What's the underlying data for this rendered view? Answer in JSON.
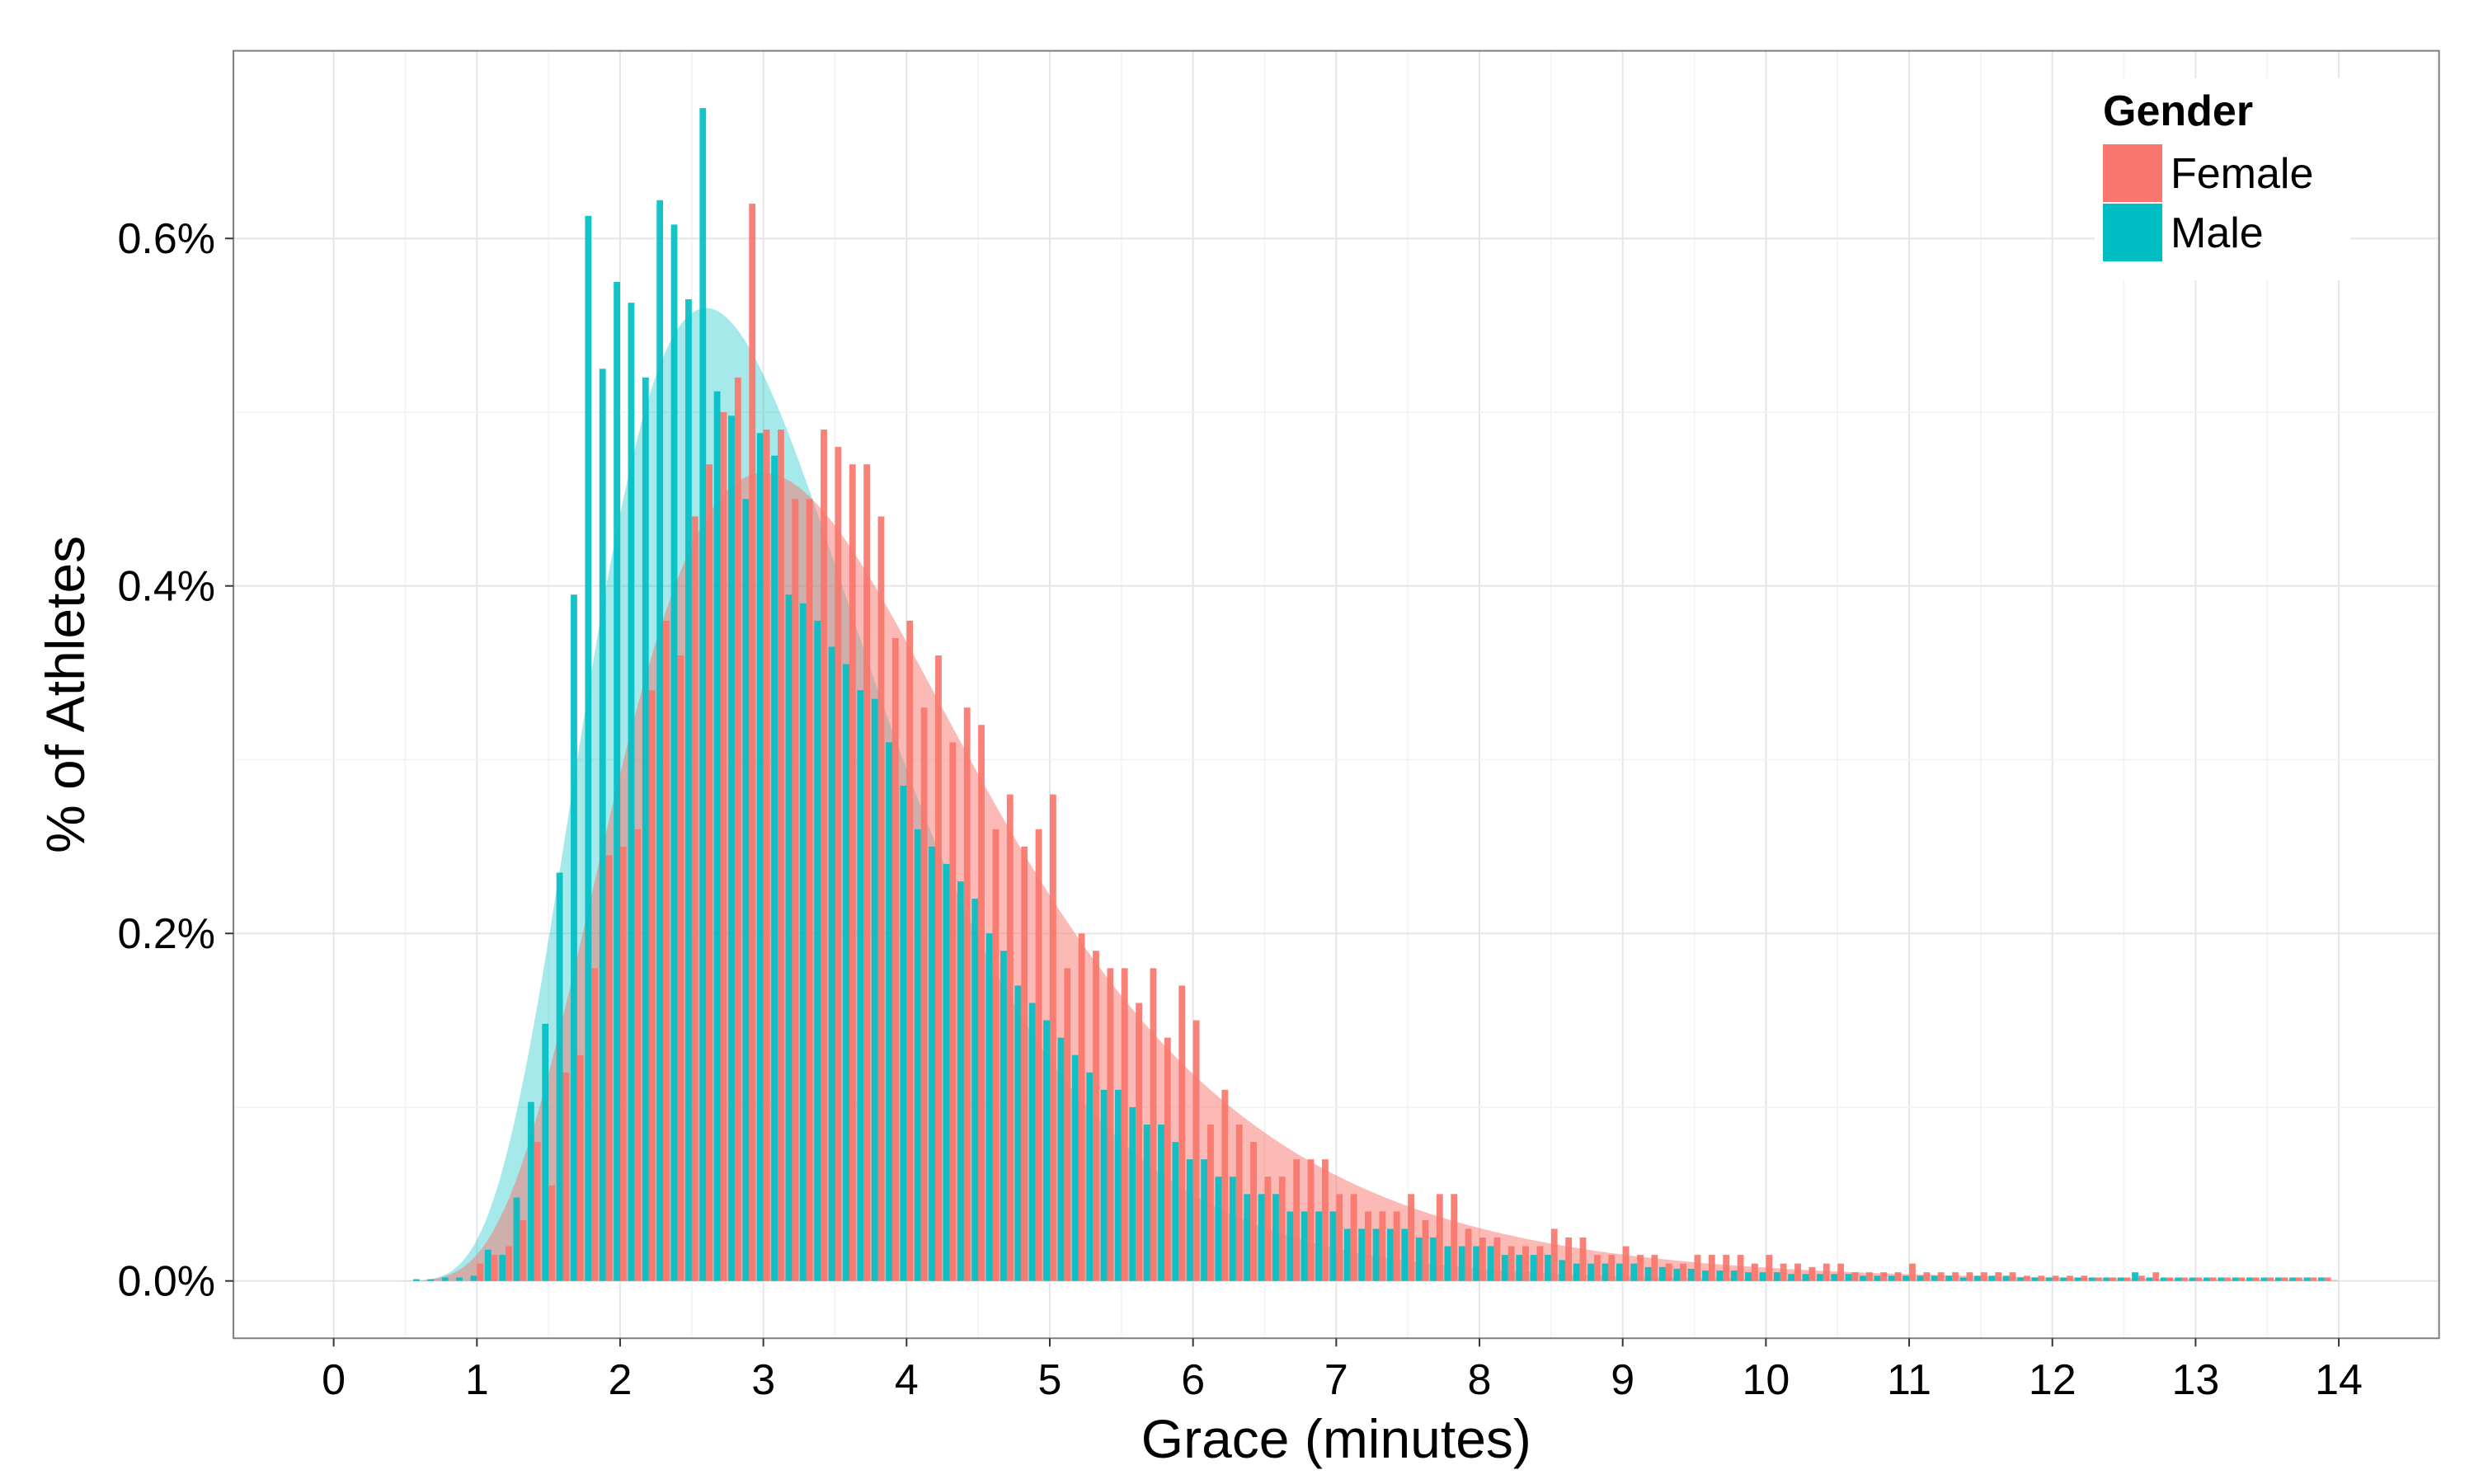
{
  "chart_data": {
    "type": "bar",
    "xlabel": "Grace (minutes)",
    "ylabel": "% of Athletes",
    "xlim": [
      -0.7,
      14.7
    ],
    "ylim": [
      -0.00033,
      0.00708
    ],
    "x_ticks": [
      0,
      1,
      2,
      3,
      4,
      5,
      6,
      7,
      8,
      9,
      10,
      11,
      12,
      13,
      14
    ],
    "x_tick_labels": [
      "0",
      "1",
      "2",
      "3",
      "4",
      "5",
      "6",
      "7",
      "8",
      "9",
      "10",
      "11",
      "12",
      "13",
      "14"
    ],
    "y_ticks": [
      0,
      0.002,
      0.004,
      0.006
    ],
    "y_tick_labels": [
      "0.0%",
      "0.2%",
      "0.4%",
      "0.6%"
    ],
    "bin_width_minutes": 0.1,
    "grid": true,
    "legend": {
      "title": "Gender",
      "position": "top-right",
      "entries": [
        {
          "label": "Female",
          "color": "#F8766D"
        },
        {
          "label": "Male",
          "color": "#00BFC4"
        }
      ]
    },
    "colors": {
      "female": "#F8766D",
      "male": "#00BFC4",
      "panel_grid": "#ebebeb",
      "panel_border": "#7f7f7f"
    },
    "x": [
      0.6,
      0.7,
      0.8,
      0.9,
      1.0,
      1.1,
      1.2,
      1.3,
      1.4,
      1.5,
      1.6,
      1.7,
      1.8,
      1.9,
      2.0,
      2.1,
      2.2,
      2.3,
      2.4,
      2.5,
      2.6,
      2.7,
      2.8,
      2.9,
      3.0,
      3.1,
      3.2,
      3.3,
      3.4,
      3.5,
      3.6,
      3.7,
      3.8,
      3.9,
      4.0,
      4.1,
      4.2,
      4.3,
      4.4,
      4.5,
      4.6,
      4.7,
      4.8,
      4.9,
      5.0,
      5.1,
      5.2,
      5.3,
      5.4,
      5.5,
      5.6,
      5.7,
      5.8,
      5.9,
      6.0,
      6.1,
      6.2,
      6.3,
      6.4,
      6.5,
      6.6,
      6.7,
      6.8,
      6.9,
      7.0,
      7.1,
      7.2,
      7.3,
      7.4,
      7.5,
      7.6,
      7.7,
      7.8,
      7.9,
      8.0,
      8.1,
      8.2,
      8.3,
      8.4,
      8.5,
      8.6,
      8.7,
      8.8,
      8.9,
      9.0,
      9.1,
      9.2,
      9.3,
      9.4,
      9.5,
      9.6,
      9.7,
      9.8,
      9.9,
      10.0,
      10.1,
      10.2,
      10.3,
      10.4,
      10.5,
      10.6,
      10.7,
      10.8,
      10.9,
      11.0,
      11.1,
      11.2,
      11.3,
      11.4,
      11.5,
      11.6,
      11.7,
      11.8,
      11.9,
      12.0,
      12.1,
      12.2,
      12.3,
      12.4,
      12.5,
      12.6,
      12.7,
      12.8,
      12.9,
      13.0,
      13.1,
      13.2,
      13.3,
      13.4,
      13.5,
      13.6,
      13.7,
      13.8,
      13.9
    ],
    "series": [
      {
        "name": "Female",
        "values": [
          0,
          0,
          0,
          0,
          0.0001,
          0.00015,
          0.0002,
          0.00035,
          0.0008,
          0.00055,
          0.0012,
          0.0013,
          0.0018,
          0.00245,
          0.0025,
          0.0026,
          0.0034,
          0.0038,
          0.0036,
          0.0044,
          0.0047,
          0.005,
          0.0052,
          0.0062,
          0.0049,
          0.0049,
          0.0045,
          0.0045,
          0.0049,
          0.0048,
          0.0047,
          0.0047,
          0.0044,
          0.0037,
          0.0038,
          0.0033,
          0.0036,
          0.0031,
          0.0033,
          0.0032,
          0.0026,
          0.0028,
          0.0025,
          0.0026,
          0.0028,
          0.0018,
          0.002,
          0.0019,
          0.0018,
          0.0018,
          0.0016,
          0.0018,
          0.0014,
          0.0017,
          0.0015,
          0.0009,
          0.0011,
          0.0009,
          0.0008,
          0.0006,
          0.0006,
          0.0007,
          0.0007,
          0.0007,
          0.0005,
          0.0005,
          0.0004,
          0.0004,
          0.0004,
          0.0005,
          0.00035,
          0.0005,
          0.0005,
          0.0003,
          0.00025,
          0.00025,
          0.0002,
          0.0002,
          0.0002,
          0.0003,
          0.00025,
          0.00025,
          0.00015,
          0.00015,
          0.0002,
          0.00015,
          0.00015,
          0.0001,
          0.0001,
          0.00015,
          0.00015,
          0.00015,
          0.00015,
          0.0001,
          0.00015,
          0.0001,
          0.0001,
          8e-05,
          0.0001,
          0.0001,
          5e-05,
          5e-05,
          5e-05,
          5e-05,
          0.0001,
          5e-05,
          5e-05,
          5e-05,
          5e-05,
          5e-05,
          5e-05,
          5e-05,
          3e-05,
          3e-05,
          3e-05,
          3e-05,
          3e-05,
          2e-05,
          2e-05,
          2e-05,
          3e-05,
          5e-05,
          2e-05,
          2e-05,
          2e-05,
          2e-05,
          2e-05,
          2e-05,
          2e-05,
          2e-05,
          2e-05,
          2e-05,
          2e-05,
          2e-05
        ]
      },
      {
        "name": "Male",
        "values": [
          1e-05,
          1e-05,
          2e-05,
          2e-05,
          3e-05,
          0.00018,
          0.00015,
          0.00048,
          0.00103,
          0.00148,
          0.00235,
          0.00395,
          0.00613,
          0.00525,
          0.00575,
          0.00563,
          0.0052,
          0.00622,
          0.00608,
          0.00565,
          0.00675,
          0.00512,
          0.00498,
          0.0045,
          0.00488,
          0.00475,
          0.00395,
          0.0039,
          0.0038,
          0.00365,
          0.00355,
          0.0034,
          0.00335,
          0.0031,
          0.00285,
          0.0026,
          0.0025,
          0.0024,
          0.0023,
          0.0022,
          0.002,
          0.0019,
          0.0017,
          0.0016,
          0.0015,
          0.0014,
          0.0013,
          0.0012,
          0.0011,
          0.0011,
          0.001,
          0.0009,
          0.0009,
          0.0008,
          0.0007,
          0.0007,
          0.0006,
          0.0006,
          0.0005,
          0.0005,
          0.0005,
          0.0004,
          0.0004,
          0.0004,
          0.0004,
          0.0003,
          0.0003,
          0.0003,
          0.0003,
          0.0003,
          0.00025,
          0.00025,
          0.0002,
          0.0002,
          0.0002,
          0.0002,
          0.00015,
          0.00015,
          0.00015,
          0.00015,
          0.00012,
          0.0001,
          0.0001,
          0.0001,
          0.0001,
          0.0001,
          8e-05,
          8e-05,
          7e-05,
          7e-05,
          6e-05,
          6e-05,
          6e-05,
          5e-05,
          5e-05,
          5e-05,
          4e-05,
          4e-05,
          4e-05,
          4e-05,
          4e-05,
          3e-05,
          3e-05,
          3e-05,
          3e-05,
          3e-05,
          3e-05,
          3e-05,
          2e-05,
          3e-05,
          3e-05,
          3e-05,
          2e-05,
          2e-05,
          2e-05,
          2e-05,
          2e-05,
          2e-05,
          2e-05,
          2e-05,
          5e-05,
          2e-05,
          2e-05,
          2e-05,
          2e-05,
          2e-05,
          2e-05,
          2e-05,
          2e-05,
          2e-05,
          2e-05,
          2e-05,
          2e-05,
          2e-05
        ]
      }
    ],
    "density": [
      {
        "name": "Female",
        "mode": 3.0,
        "peak": 0.00465,
        "shape": "lognormal",
        "sigma": 0.42,
        "color": "#F8766D",
        "opacity": 0.5
      },
      {
        "name": "Male",
        "mode": 2.6,
        "peak": 0.0056,
        "shape": "lognormal",
        "sigma": 0.38,
        "color": "#00BFC4",
        "opacity": 0.35
      }
    ]
  }
}
